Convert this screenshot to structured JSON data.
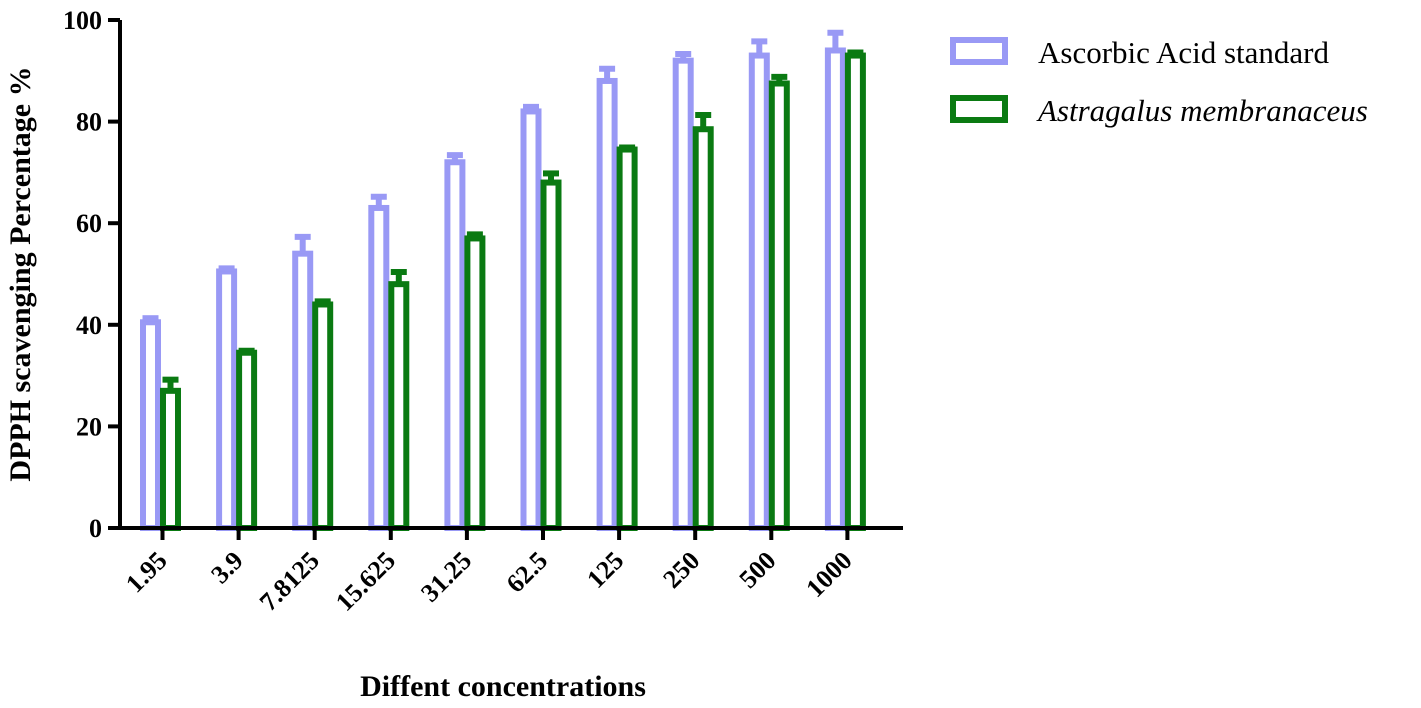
{
  "chart_data": {
    "type": "bar",
    "xlabel": "Diffent concentrations",
    "ylabel": "DPPH scavenging Percentage %",
    "ylim": [
      0,
      100
    ],
    "yticks": [
      0,
      20,
      40,
      60,
      80,
      100
    ],
    "categories": [
      "1.95",
      "3.9",
      "7.8125",
      "15.625",
      "31.25",
      "62.5",
      "125",
      "250",
      "500",
      "1000"
    ],
    "series": [
      {
        "name": "Ascorbic Acid standard",
        "style": "normal",
        "color": "#9999f5",
        "values": [
          40.5,
          50.5,
          54,
          63,
          72,
          82,
          88,
          92,
          93,
          94
        ],
        "errors": [
          0.8,
          0.6,
          3.3,
          2.2,
          1.4,
          0.9,
          2.4,
          1.3,
          2.8,
          3.5
        ]
      },
      {
        "name": "Astragalus membranaceus",
        "style": "italic",
        "color": "#0a7a12",
        "values": [
          27,
          34.5,
          44,
          48,
          57,
          68,
          74.5,
          78.5,
          87.5,
          93
        ],
        "errors": [
          2.2,
          0.4,
          0.6,
          2.4,
          0.8,
          1.8,
          0.4,
          2.8,
          1.3,
          0.6
        ]
      }
    ],
    "legend_position": "top-right",
    "grid": false
  }
}
